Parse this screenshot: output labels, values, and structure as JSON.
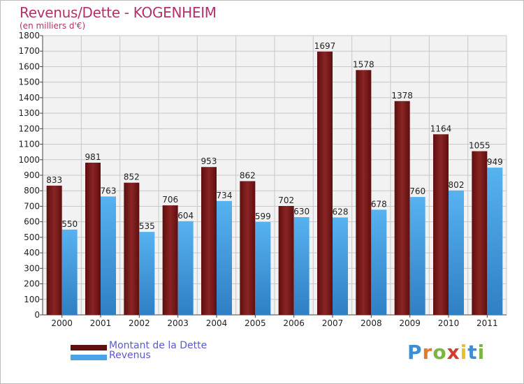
{
  "header": {
    "title": "Revenus/Dette - KOGENHEIM",
    "subtitle": "(en milliers d'€)"
  },
  "colors": {
    "dette": "#7a1a1a",
    "revenus": "#4aa3e8",
    "title": "#b5306b",
    "legend_text": "#5a5ad0"
  },
  "legend": {
    "dette_label": "Montant de la Dette",
    "revenus_label": "Revenus"
  },
  "logo": {
    "text": "Proxiti",
    "letter_colors": [
      "#3d8fd1",
      "#e07b2a",
      "#7ab640",
      "#d63b2f",
      "#e8c21e",
      "#3d8fd1",
      "#7ab640"
    ]
  },
  "chart_data": {
    "type": "bar",
    "categories": [
      "2000",
      "2001",
      "2002",
      "2003",
      "2004",
      "2005",
      "2006",
      "2007",
      "2008",
      "2009",
      "2010",
      "2011"
    ],
    "series": [
      {
        "name": "Montant de la Dette",
        "values": [
          833,
          981,
          852,
          706,
          953,
          862,
          702,
          1697,
          1578,
          1378,
          1164,
          1055
        ]
      },
      {
        "name": "Revenus",
        "values": [
          550,
          763,
          535,
          604,
          734,
          599,
          630,
          628,
          678,
          760,
          802,
          949
        ]
      }
    ],
    "title": "Revenus/Dette - KOGENHEIM",
    "ylabel": "(en milliers d'€)",
    "ylim": [
      0,
      1800
    ],
    "yticks": [
      0,
      100,
      200,
      300,
      400,
      500,
      600,
      700,
      800,
      900,
      1000,
      1100,
      1200,
      1300,
      1400,
      1500,
      1600,
      1700,
      1800
    ],
    "grid": true,
    "legend_position": "bottom-left"
  }
}
